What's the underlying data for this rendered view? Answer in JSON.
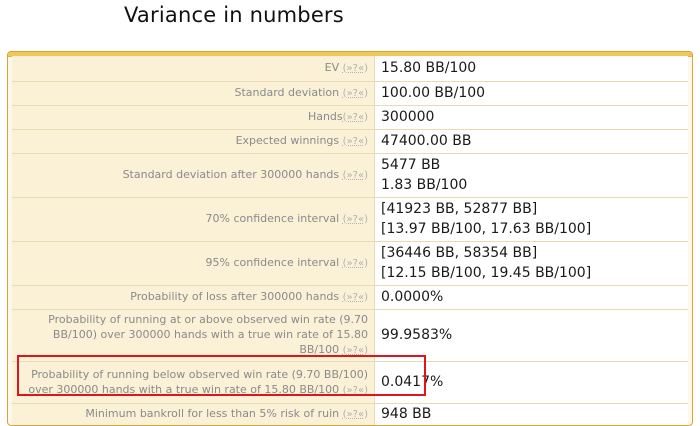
{
  "page": {
    "title": "Variance in numbers"
  },
  "help_label": "(»?«)",
  "rows": [
    {
      "label": "EV ",
      "values": [
        "15.80 BB/100"
      ]
    },
    {
      "label": "Standard deviation ",
      "values": [
        "100.00 BB/100"
      ]
    },
    {
      "label": "Hands",
      "values": [
        "300000"
      ]
    },
    {
      "label": "Expected winnings ",
      "values": [
        "47400.00 BB"
      ]
    },
    {
      "label": "Standard deviation after 300000 hands ",
      "values": [
        "5477 BB",
        "1.83 BB/100"
      ]
    },
    {
      "label": "70% confidence interval ",
      "values": [
        "[41923 BB, 52877 BB]",
        "[13.97 BB/100, 17.63 BB/100]"
      ]
    },
    {
      "label": "95% confidence interval ",
      "values": [
        "[36446 BB, 58354 BB]",
        "[12.15 BB/100, 19.45 BB/100]"
      ]
    },
    {
      "label": "Probability of loss after 300000 hands ",
      "values": [
        "0.0000%"
      ]
    },
    {
      "label": "Probability of running at or above observed win rate (9.70 BB/100) over 300000 hands with a true win rate of 15.80 BB/100 ",
      "values": [
        "99.9583%"
      ]
    },
    {
      "label": "Probability of running below observed win rate (9.70 BB/100) over 300000 hands with a true win rate of 15.80 BB/100 ",
      "values": [
        "0.0417%"
      ]
    },
    {
      "label": "Minimum bankroll for less than 5% risk of ruin ",
      "values": [
        "948 BB"
      ]
    }
  ],
  "colors": {
    "highlight": "#e0141c",
    "box_border": "#d8a43a",
    "label_bg": "#fbf1d7"
  }
}
